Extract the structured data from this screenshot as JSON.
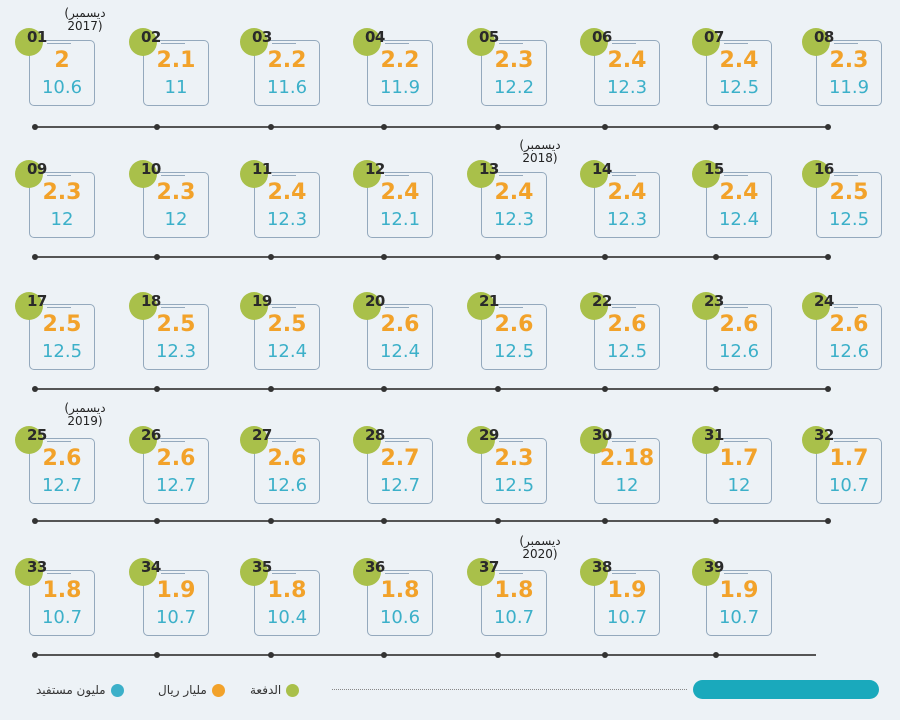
{
  "chart_data": {
    "type": "table",
    "payments": [
      {
        "n": "01",
        "amount": "2",
        "beneficiaries": "10.6"
      },
      {
        "n": "02",
        "amount": "2.1",
        "beneficiaries": "11"
      },
      {
        "n": "03",
        "amount": "2.2",
        "beneficiaries": "11.6"
      },
      {
        "n": "04",
        "amount": "2.2",
        "beneficiaries": "11.9"
      },
      {
        "n": "05",
        "amount": "2.3",
        "beneficiaries": "12.2"
      },
      {
        "n": "06",
        "amount": "2.4",
        "beneficiaries": "12.3"
      },
      {
        "n": "07",
        "amount": "2.4",
        "beneficiaries": "12.5"
      },
      {
        "n": "08",
        "amount": "2.3",
        "beneficiaries": "11.9"
      },
      {
        "n": "09",
        "amount": "2.3",
        "beneficiaries": "12"
      },
      {
        "n": "10",
        "amount": "2.3",
        "beneficiaries": "12"
      },
      {
        "n": "11",
        "amount": "2.4",
        "beneficiaries": "12.3"
      },
      {
        "n": "12",
        "amount": "2.4",
        "beneficiaries": "12.1"
      },
      {
        "n": "13",
        "amount": "2.4",
        "beneficiaries": "12.3"
      },
      {
        "n": "14",
        "amount": "2.4",
        "beneficiaries": "12.3"
      },
      {
        "n": "15",
        "amount": "2.4",
        "beneficiaries": "12.4"
      },
      {
        "n": "16",
        "amount": "2.5",
        "beneficiaries": "12.5"
      },
      {
        "n": "17",
        "amount": "2.5",
        "beneficiaries": "12.5"
      },
      {
        "n": "18",
        "amount": "2.5",
        "beneficiaries": "12.3"
      },
      {
        "n": "19",
        "amount": "2.5",
        "beneficiaries": "12.4"
      },
      {
        "n": "20",
        "amount": "2.6",
        "beneficiaries": "12.4"
      },
      {
        "n": "21",
        "amount": "2.6",
        "beneficiaries": "12.5"
      },
      {
        "n": "22",
        "amount": "2.6",
        "beneficiaries": "12.5"
      },
      {
        "n": "23",
        "amount": "2.6",
        "beneficiaries": "12.6"
      },
      {
        "n": "24",
        "amount": "2.6",
        "beneficiaries": "12.6"
      },
      {
        "n": "25",
        "amount": "2.6",
        "beneficiaries": "12.7"
      },
      {
        "n": "26",
        "amount": "2.6",
        "beneficiaries": "12.7"
      },
      {
        "n": "27",
        "amount": "2.6",
        "beneficiaries": "12.6"
      },
      {
        "n": "28",
        "amount": "2.7",
        "beneficiaries": "12.7"
      },
      {
        "n": "29",
        "amount": "2.3",
        "beneficiaries": "12.5"
      },
      {
        "n": "30",
        "amount": "2.18",
        "beneficiaries": "12"
      },
      {
        "n": "31",
        "amount": "1.7",
        "beneficiaries": "12"
      },
      {
        "n": "32",
        "amount": "1.7",
        "beneficiaries": "10.7"
      },
      {
        "n": "33",
        "amount": "1.8",
        "beneficiaries": "10.7"
      },
      {
        "n": "34",
        "amount": "1.9",
        "beneficiaries": "10.7"
      },
      {
        "n": "35",
        "amount": "1.8",
        "beneficiaries": "10.4"
      },
      {
        "n": "36",
        "amount": "1.8",
        "beneficiaries": "10.6"
      },
      {
        "n": "37",
        "amount": "1.8",
        "beneficiaries": "10.7"
      },
      {
        "n": "38",
        "amount": "1.9",
        "beneficiaries": "10.7"
      },
      {
        "n": "39",
        "amount": "1.9",
        "beneficiaries": "10.7"
      }
    ],
    "annotations": [
      {
        "payment": "01",
        "month": "(ديسمبر",
        "year": "2017)"
      },
      {
        "payment": "13",
        "month": "(ديسمبر",
        "year": "2018)"
      },
      {
        "payment": "25",
        "month": "(ديسمبر",
        "year": "2019)"
      },
      {
        "payment": "37",
        "month": "(ديسمبر",
        "year": "2020)"
      }
    ],
    "legend": [
      {
        "label": "الدفعة",
        "color": "#a9c04a"
      },
      {
        "label": "مليار ريال",
        "color": "#f2a22a"
      },
      {
        "label": "مليون مستفيد",
        "color": "#3cb0c9"
      }
    ],
    "colors": {
      "payment": "#a9c04a",
      "amount": "#f2a22a",
      "beneficiaries": "#3cb0c9",
      "bar": "#1aa9bc"
    }
  }
}
